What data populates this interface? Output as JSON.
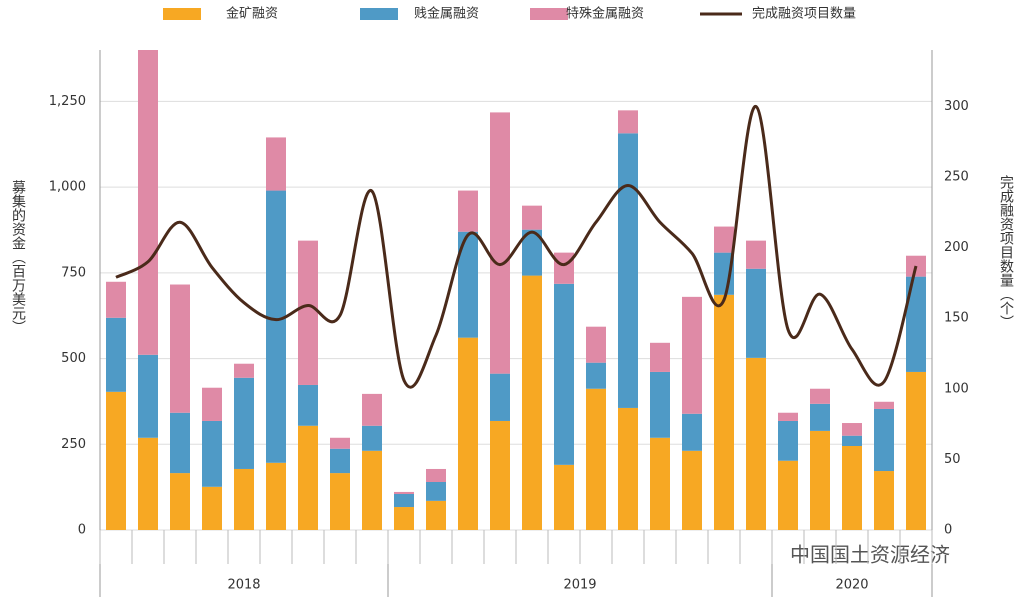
{
  "chart_data": {
    "type": "bar",
    "stacked": true,
    "y_label": "募集的资金（百万美元）",
    "y2_label": "完成融资项目数量（个）",
    "categories": [
      null,
      null,
      null,
      null,
      null,
      null,
      null,
      null,
      null,
      null,
      null,
      null,
      null,
      null,
      null,
      null,
      null,
      null,
      null,
      null,
      null,
      null,
      null,
      null,
      null,
      null
    ],
    "x_groups": [
      "2018",
      "2019",
      "2020"
    ],
    "series": [
      {
        "name": "金矿融资",
        "color": "#f7a823",
        "values": [
          403,
          269,
          166,
          126,
          178,
          196,
          304,
          166,
          231,
          67,
          85,
          561,
          318,
          742,
          190,
          412,
          356,
          269,
          231,
          686,
          502,
          202,
          289,
          245,
          172,
          461
        ]
      },
      {
        "name": "贱金属融资",
        "color": "#4f9ac6",
        "values": [
          216,
          242,
          176,
          192,
          266,
          794,
          119,
          71,
          73,
          38,
          55,
          309,
          138,
          134,
          528,
          76,
          801,
          192,
          108,
          123,
          260,
          116,
          79,
          30,
          181,
          278
        ]
      },
      {
        "name": "特殊金属融资",
        "color": "#df8aa6",
        "values": [
          105,
          889,
          374,
          97,
          41,
          155,
          421,
          32,
          93,
          6,
          38,
          120,
          762,
          70,
          91,
          105,
          67,
          85,
          341,
          76,
          82,
          24,
          44,
          37,
          21,
          61
        ]
      },
      {
        "name": "完成融资项目数量",
        "color": "#4a2a1a",
        "type": "line",
        "axis": "y2",
        "values": [
          179,
          190,
          218,
          186,
          161,
          149,
          159,
          152,
          240,
          106,
          138,
          209,
          188,
          211,
          188,
          218,
          244,
          218,
          196,
          163,
          300,
          142,
          167,
          128,
          105,
          187
        ]
      }
    ],
    "ylim": [
      0,
      1400
    ],
    "yticks": [
      0,
      250,
      500,
      750,
      {
        "value": 1000,
        "label": "1,000"
      },
      {
        "value": 1250,
        "label": "1,250"
      }
    ],
    "y2lim": [
      0,
      340
    ],
    "y2ticks": [
      0,
      50,
      100,
      150,
      200,
      250,
      300
    ],
    "grid": true,
    "legend": "top",
    "watermark": "中国国土资源经济"
  }
}
